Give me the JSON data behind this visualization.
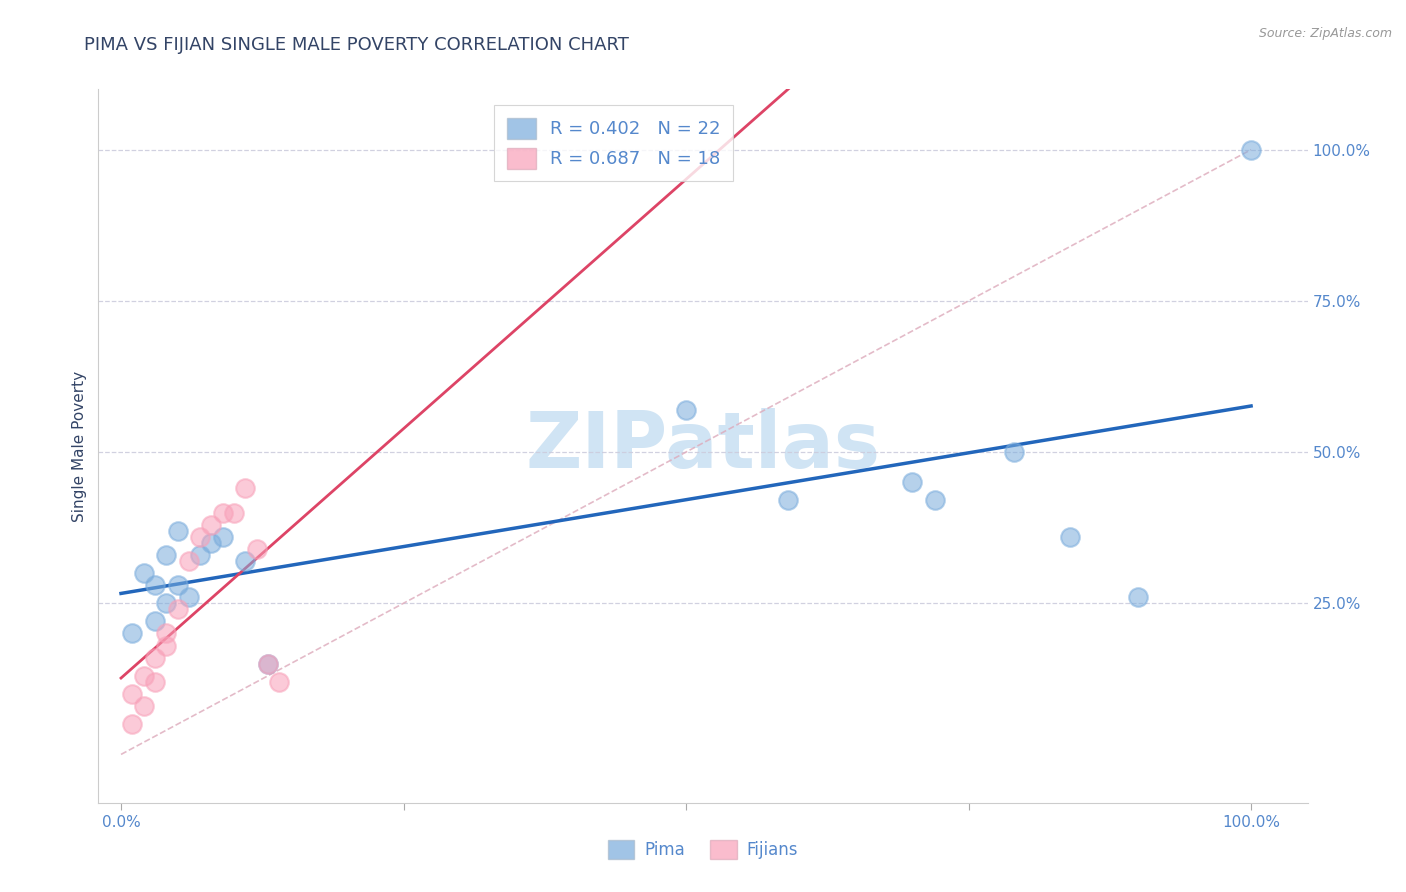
{
  "title": "PIMA VS FIJIAN SINGLE MALE POVERTY CORRELATION CHART",
  "source": "Source: ZipAtlas.com",
  "ylabel": "Single Male Poverty",
  "legend_blue_label": "R = 0.402   N = 22",
  "legend_pink_label": "R = 0.687   N = 18",
  "pima_color": "#7aacdc",
  "fijian_color": "#f8a0b8",
  "pima_line_color": "#2266bb",
  "fijian_line_color": "#dd4466",
  "diag_color": "#ddaabb",
  "grid_color": "#ccccdd",
  "watermark": "ZIPatlas",
  "watermark_color": "#d0e4f4",
  "title_color": "#334466",
  "axis_label_color": "#5588cc",
  "background_color": "#ffffff",
  "pima_x": [
    1,
    2,
    3,
    3,
    4,
    4,
    5,
    5,
    6,
    7,
    8,
    9,
    11,
    13,
    50,
    59,
    70,
    72,
    79,
    84,
    90,
    100
  ],
  "pima_y": [
    20,
    30,
    28,
    22,
    33,
    25,
    37,
    28,
    26,
    33,
    35,
    36,
    32,
    15,
    57,
    42,
    45,
    42,
    50,
    36,
    26,
    100
  ],
  "fijian_x": [
    1,
    1,
    2,
    2,
    3,
    3,
    4,
    4,
    5,
    6,
    7,
    8,
    9,
    10,
    11,
    12,
    13,
    14
  ],
  "fijian_y": [
    5,
    10,
    8,
    13,
    12,
    16,
    18,
    20,
    24,
    32,
    36,
    38,
    40,
    40,
    44,
    34,
    15,
    12
  ],
  "xlim": [
    -2,
    105
  ],
  "ylim": [
    -8,
    110
  ],
  "pima_N": 22,
  "fijian_N": 18,
  "pima_R": 0.402,
  "fijian_R": 0.687
}
